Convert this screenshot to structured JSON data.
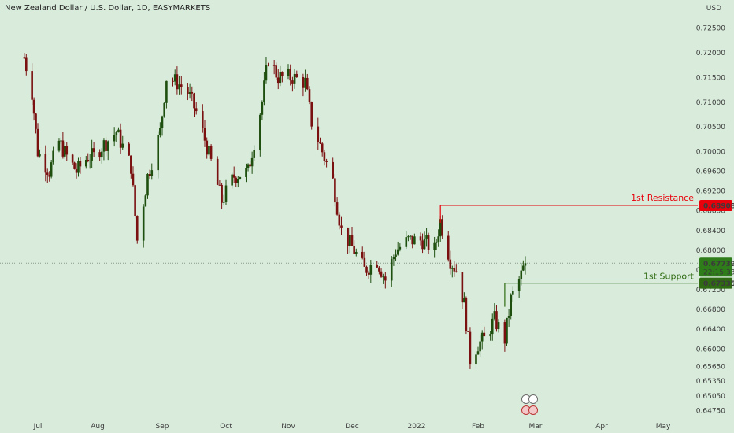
{
  "header": {
    "title": "New Zealand Dollar / U.S. Dollar, 1D, EASYMARKETS"
  },
  "axis": {
    "currency": "USD"
  },
  "chart_data": {
    "type": "candlestick",
    "title": "New Zealand Dollar / U.S. Dollar, 1D, EASYMARKETS",
    "y_unit": "USD",
    "ylim": [
      0.6465,
      0.7275
    ],
    "y_ticks": [
      "0.72500",
      "0.72000",
      "0.71500",
      "0.71000",
      "0.70500",
      "0.70000",
      "0.69600",
      "0.69200",
      "0.68800",
      "0.68400",
      "0.68000",
      "0.67600",
      "0.67200",
      "0.66800",
      "0.66400",
      "0.66000",
      "0.65650",
      "0.65350",
      "0.65050",
      "0.64750"
    ],
    "x_ticks": [
      "Jul",
      "Aug",
      "Sep",
      "Oct",
      "Nov",
      "Dec",
      "2022",
      "Feb",
      "Mar",
      "Apr",
      "May"
    ],
    "levels": [
      {
        "name": "1st Resistance",
        "price": 0.68908,
        "price_label": "0.68908",
        "color": "#e8000b"
      },
      {
        "name": "1st Support",
        "price": 0.67335,
        "price_label": "0.67335",
        "color": "#2f6b12"
      }
    ],
    "last_price": {
      "value": 0.67739,
      "label": "0.67739",
      "countdown": "22:15:33"
    },
    "colors": {
      "up": "#1f4f0f",
      "down": "#7a1010",
      "background": "#d9ecdc"
    },
    "ohlc_anchors": [
      [
        "2021-06-24",
        0.719
      ],
      [
        "2021-06-28",
        0.712
      ],
      [
        "2021-07-01",
        0.7
      ],
      [
        "2021-07-07",
        0.696
      ],
      [
        "2021-07-12",
        0.702
      ],
      [
        "2021-07-16",
        0.699
      ],
      [
        "2021-07-21",
        0.696
      ],
      [
        "2021-07-27",
        0.699
      ],
      [
        "2021-07-30",
        0.699
      ],
      [
        "2021-08-03",
        0.701
      ],
      [
        "2021-08-10",
        0.704
      ],
      [
        "2021-08-13",
        0.701
      ],
      [
        "2021-08-17",
        0.697
      ],
      [
        "2021-08-20",
        0.682
      ],
      [
        "2021-08-25",
        0.695
      ],
      [
        "2021-08-31",
        0.704
      ],
      [
        "2021-09-03",
        0.715
      ],
      [
        "2021-09-08",
        0.714
      ],
      [
        "2021-09-13",
        0.712
      ],
      [
        "2021-09-17",
        0.708
      ],
      [
        "2021-09-22",
        0.701
      ],
      [
        "2021-09-29",
        0.69
      ],
      [
        "2021-10-05",
        0.695
      ],
      [
        "2021-10-12",
        0.696
      ],
      [
        "2021-10-19",
        0.71
      ],
      [
        "2021-10-22",
        0.719
      ],
      [
        "2021-10-27",
        0.715
      ],
      [
        "2021-11-03",
        0.715
      ],
      [
        "2021-11-09",
        0.714
      ],
      [
        "2021-11-12",
        0.706
      ],
      [
        "2021-11-17",
        0.7
      ],
      [
        "2021-11-22",
        0.694
      ],
      [
        "2021-11-26",
        0.684
      ],
      [
        "2021-12-02",
        0.68
      ],
      [
        "2021-12-07",
        0.676
      ],
      [
        "2021-12-13",
        0.678
      ],
      [
        "2021-12-17",
        0.674
      ],
      [
        "2021-12-22",
        0.68
      ],
      [
        "2021-12-28",
        0.682
      ],
      [
        "2022-01-04",
        0.682
      ],
      [
        "2022-01-10",
        0.68
      ],
      [
        "2022-01-13",
        0.686
      ],
      [
        "2022-01-18",
        0.678
      ],
      [
        "2022-01-21",
        0.676
      ],
      [
        "2022-01-25",
        0.669
      ],
      [
        "2022-01-28",
        0.658
      ],
      [
        "2022-02-01",
        0.661
      ],
      [
        "2022-02-04",
        0.662
      ],
      [
        "2022-02-09",
        0.666
      ],
      [
        "2022-02-14",
        0.662
      ],
      [
        "2022-02-17",
        0.67
      ],
      [
        "2022-02-22",
        0.675
      ],
      [
        "2022-02-24",
        0.6774
      ]
    ]
  }
}
